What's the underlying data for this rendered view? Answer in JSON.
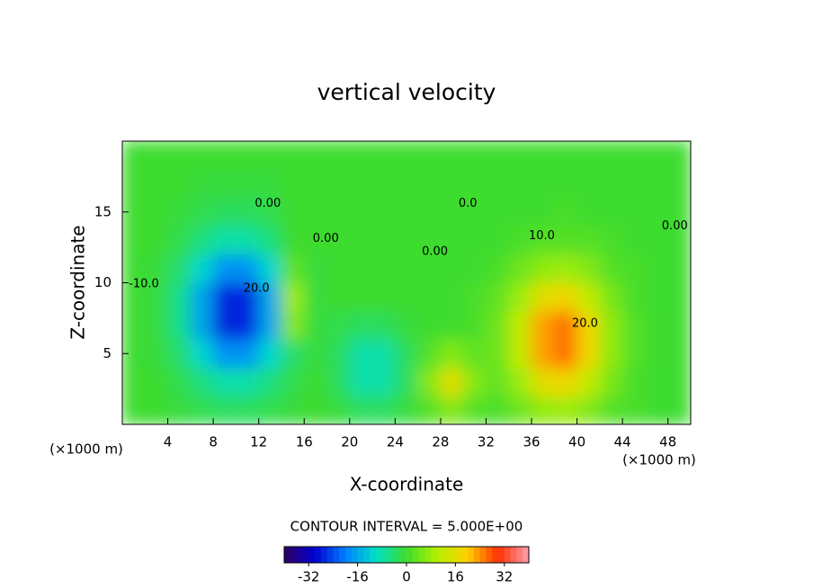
{
  "chart_data": {
    "type": "heatmap",
    "title": "vertical velocity",
    "x_label": "X-coordinate",
    "y_label": "Z-coordinate",
    "x_unit_label": "(×1000 m)",
    "contour_interval_label": "CONTOUR INTERVAL = 5.000E+00",
    "xlim": [
      0,
      50
    ],
    "ylim": [
      0,
      20
    ],
    "xticks": [
      4,
      8,
      12,
      16,
      20,
      24,
      28,
      32,
      36,
      40,
      44,
      48
    ],
    "yticks": [
      5,
      10,
      15
    ],
    "x": [
      1,
      3,
      5,
      7,
      9,
      11,
      13,
      15,
      17,
      19,
      21,
      23,
      25,
      27,
      29,
      31,
      33,
      35,
      37,
      39,
      41,
      43,
      45,
      47,
      49
    ],
    "y": [
      1,
      3,
      5,
      7,
      9,
      11,
      13,
      15,
      17,
      19
    ],
    "z": [
      [
        0,
        0,
        -1,
        -2,
        -3,
        -3,
        -2,
        -1,
        0,
        -1,
        -3,
        -3,
        -1,
        2,
        6,
        2,
        1,
        4,
        7,
        8,
        6,
        2,
        1,
        0,
        0
      ],
      [
        0,
        0,
        -2,
        -5,
        -8,
        -8,
        -5,
        -2,
        0,
        -3,
        -8,
        -8,
        -3,
        6,
        16,
        6,
        3,
        8,
        16,
        18,
        12,
        5,
        1,
        0,
        0
      ],
      [
        0,
        -1,
        -4,
        -11,
        -18,
        -18,
        -11,
        -4,
        -1,
        -3,
        -8,
        -8,
        -3,
        2,
        6,
        3,
        4,
        12,
        23,
        26,
        18,
        7,
        2,
        0,
        0
      ],
      [
        0,
        -1,
        -6,
        -16,
        -27,
        -27,
        -16,
        6,
        -1,
        -2,
        -3,
        -3,
        -1,
        0,
        0,
        1,
        4,
        12,
        23,
        26,
        18,
        7,
        2,
        0,
        0
      ],
      [
        0,
        -1,
        -6,
        -16,
        -27,
        -27,
        -16,
        8,
        -1,
        0,
        0,
        0,
        0,
        0,
        0,
        1,
        3,
        8,
        16,
        18,
        12,
        5,
        1,
        0,
        0
      ],
      [
        0,
        -1,
        -4,
        -11,
        -18,
        -18,
        -11,
        3,
        -1,
        0,
        0,
        0,
        0,
        0,
        0,
        0,
        1,
        4,
        7,
        8,
        6,
        2,
        1,
        0,
        0
      ],
      [
        0,
        0,
        -2,
        -5,
        -8,
        -8,
        -5,
        0,
        0,
        0,
        0,
        0,
        0,
        0,
        0,
        0,
        0,
        1,
        2,
        2,
        2,
        1,
        0,
        0,
        0
      ],
      [
        0,
        0,
        -1,
        -2,
        -3,
        -3,
        -2,
        0,
        0,
        0,
        0,
        0,
        0,
        0,
        0,
        0,
        0,
        0,
        0,
        1,
        0,
        0,
        0,
        0,
        0
      ],
      [
        0,
        0,
        0,
        -1,
        -1,
        -1,
        -1,
        0,
        0,
        0,
        0,
        0,
        0,
        0,
        0,
        0,
        0,
        0,
        0,
        0,
        0,
        0,
        0,
        0,
        0
      ],
      [
        0,
        0,
        0,
        0,
        0,
        0,
        0,
        0,
        0,
        0,
        0,
        0,
        0,
        0,
        0,
        0,
        0,
        0,
        0,
        0,
        0,
        0,
        0,
        0,
        0
      ]
    ],
    "clim": [
      -40,
      40
    ],
    "colormap": [
      "#300060",
      "#0000d0",
      "#0080ff",
      "#00e0c8",
      "#3ddc2f",
      "#b4f000",
      "#ffd000",
      "#ff3000",
      "#ffa0b0"
    ],
    "colorbar_ticks": [
      -32,
      -16,
      0,
      16,
      32
    ],
    "annotations": [
      {
        "text": "-10.0",
        "x": 1.9,
        "y": 9.9
      },
      {
        "text": "20.0",
        "x": 11.8,
        "y": 9.6
      },
      {
        "text": "0.00",
        "x": 12.8,
        "y": 15.6
      },
      {
        "text": "0.00",
        "x": 17.9,
        "y": 13.1
      },
      {
        "text": "0.0",
        "x": 30.4,
        "y": 15.6
      },
      {
        "text": "0.00",
        "x": 27.5,
        "y": 12.2
      },
      {
        "text": "10.0",
        "x": 36.9,
        "y": 13.3
      },
      {
        "text": "20.0",
        "x": 40.7,
        "y": 7.1
      },
      {
        "text": "0.00",
        "x": 48.6,
        "y": 14
      }
    ]
  }
}
